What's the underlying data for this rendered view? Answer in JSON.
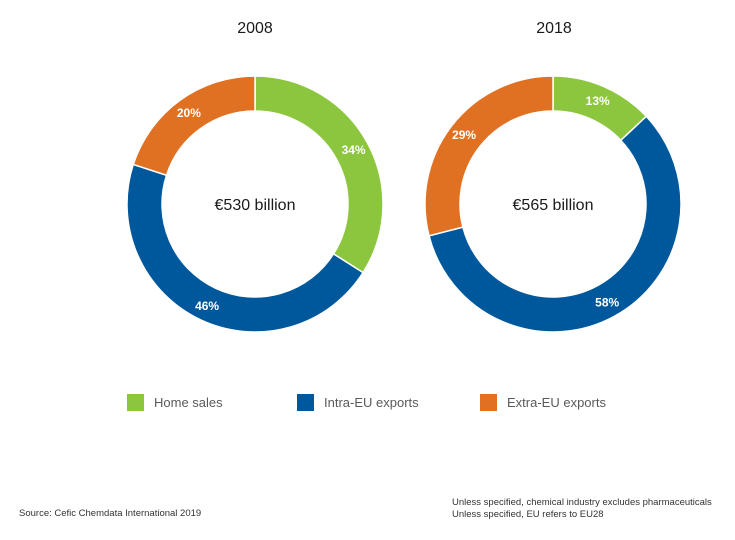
{
  "chart_data": [
    {
      "type": "pie",
      "donut": true,
      "title": "2008",
      "center_label": "€530 billion",
      "categories": [
        "Home sales",
        "Intra-EU exports",
        "Extra-EU exports"
      ],
      "values": [
        34,
        46,
        20
      ],
      "labels": [
        "34%",
        "46%",
        "20%"
      ]
    },
    {
      "type": "pie",
      "donut": true,
      "title": "2018",
      "center_label": "€565 billion",
      "categories": [
        "Home sales",
        "Intra-EU exports",
        "Extra-EU exports"
      ],
      "values": [
        13,
        58,
        29
      ],
      "labels": [
        "13%",
        "58%",
        "29%"
      ]
    }
  ],
  "colors": {
    "home": "#8cc63f",
    "intra": "#00589c",
    "extra": "#e17122"
  },
  "legend": [
    {
      "label": "Home sales",
      "color": "#8cc63f"
    },
    {
      "label": "Intra-EU exports",
      "color": "#00589c"
    },
    {
      "label": "Extra-EU exports",
      "color": "#e17122"
    }
  ],
  "source": "Source: Cefic Chemdata International 2019",
  "notes": [
    "Unless specified, chemical industry excludes pharmaceuticals",
    "Unless specified, EU refers to EU28"
  ]
}
